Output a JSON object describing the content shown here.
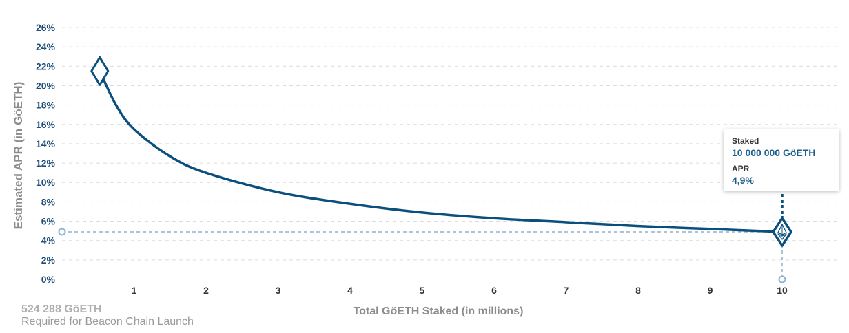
{
  "chart_data": {
    "type": "line",
    "ylabel": "Estimated APR (in GöETH)",
    "xlabel": "Total GöETH Staked  (in millions)",
    "xlim": [
      0,
      10.8
    ],
    "ylim": [
      0,
      26
    ],
    "y_ticks": [
      "0%",
      "2%",
      "4%",
      "6%",
      "8%",
      "10%",
      "12%",
      "14%",
      "16%",
      "18%",
      "20%",
      "22%",
      "24%",
      "26%"
    ],
    "y_tick_values": [
      0,
      2,
      4,
      6,
      8,
      10,
      12,
      14,
      16,
      18,
      20,
      22,
      24,
      26
    ],
    "x_ticks": [
      "1",
      "2",
      "3",
      "4",
      "5",
      "6",
      "7",
      "8",
      "9",
      "10"
    ],
    "x_tick_values": [
      1,
      2,
      3,
      4,
      5,
      6,
      7,
      8,
      9,
      10
    ],
    "grid": "horizontal-dashed",
    "series": [
      {
        "x": [
          0.524288,
          0.75,
          1,
          1.5,
          2,
          3,
          4,
          5,
          6,
          7,
          8,
          9,
          10
        ],
        "y": [
          21.5,
          18.0,
          15.5,
          12.7,
          11.0,
          9.0,
          7.8,
          6.9,
          6.3,
          5.9,
          5.5,
          5.2,
          4.9
        ],
        "color": "#0b4f7e"
      }
    ],
    "start_marker": {
      "x": 0.524288,
      "y": 21.5
    },
    "highlight": {
      "x": 10,
      "y": 4.9
    }
  },
  "tooltip": {
    "staked_label": "Staked",
    "staked_value": "10 000 000 GöETH",
    "apr_label": "APR",
    "apr_value": "4,9%"
  },
  "note": {
    "title": "524 288 GöETH",
    "subtitle": "Required for Beacon Chain Launch"
  },
  "colors": {
    "line": "#0b4f7e",
    "guide": "#8fb0cf",
    "grid": "#dcdcdc"
  }
}
